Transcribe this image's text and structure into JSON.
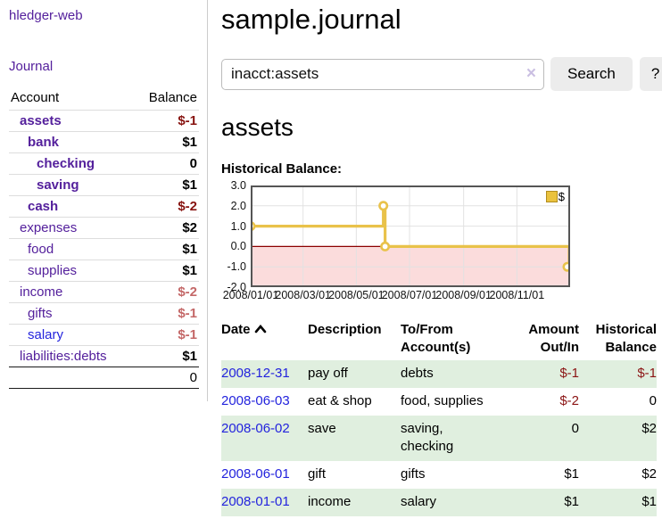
{
  "sidebar": {
    "app_title": "hledger-web",
    "journal_link": "Journal",
    "accounts_table": {
      "headers": {
        "account": "Account",
        "balance": "Balance"
      },
      "rows": [
        {
          "name": "assets",
          "balance": "$-1"
        },
        {
          "name": "bank",
          "balance": "$1"
        },
        {
          "name": "checking",
          "balance": "0"
        },
        {
          "name": "saving",
          "balance": "$1"
        },
        {
          "name": "cash",
          "balance": "$-2"
        },
        {
          "name": "expenses",
          "balance": "$2"
        },
        {
          "name": "food",
          "balance": "$1"
        },
        {
          "name": "supplies",
          "balance": "$1"
        },
        {
          "name": "income",
          "balance": "$-2"
        },
        {
          "name": "gifts",
          "balance": "$-1"
        },
        {
          "name": "salary",
          "balance": "$-1"
        },
        {
          "name": "liabilities:debts",
          "balance": "$1"
        }
      ],
      "total": "0"
    }
  },
  "header": {
    "title": "sample.journal"
  },
  "search": {
    "value": "inacct:assets",
    "clear_icon": "×",
    "button_label": "Search",
    "help_label": "?"
  },
  "account_page": {
    "heading": "assets",
    "chart_title": "Historical Balance:"
  },
  "chart_data": {
    "type": "line",
    "title": "Historical Balance:",
    "legend": {
      "label": "$",
      "swatch_color": "#eac23e",
      "position": "top-right"
    },
    "step": "after",
    "points": [
      {
        "date": "2008-01-01",
        "value": 1
      },
      {
        "date": "2008-06-01",
        "value": 2
      },
      {
        "date": "2008-06-03",
        "value": 0
      },
      {
        "date": "2008-12-31",
        "value": -1
      }
    ],
    "xlim": [
      "2008-01-01",
      "2009-01-01"
    ],
    "ylim": [
      -2,
      3
    ],
    "yticks": [
      3.0,
      2.0,
      1.0,
      0.0,
      -1.0,
      -2.0
    ],
    "ytick_labels": [
      "3.0",
      "2.0",
      "1.0",
      "0.0",
      "-1.0",
      "-2.0"
    ],
    "xticks": [
      {
        "date": "2008-01-01",
        "label": "2008/01/01"
      },
      {
        "date": "2008-03-01",
        "label": "2008/03/01"
      },
      {
        "date": "2008-05-01",
        "label": "2008/05/01"
      },
      {
        "date": "2008-07-01",
        "label": "2008/07/01"
      },
      {
        "date": "2008-09-01",
        "label": "2008/09/01"
      },
      {
        "date": "2008-11-01",
        "label": "2008/11/01"
      }
    ],
    "grid": true,
    "colors": {
      "line": "#e9c24a",
      "marker_fill": "#ffffff",
      "negative_region": "#fbdcdc",
      "zero_line": "#8c0000",
      "gridline": "#e2e2e2",
      "plot_border": "#555555"
    }
  },
  "register_table": {
    "headers": {
      "date": "Date",
      "description": "Description",
      "accounts": "To/From\nAccount(s)",
      "amount": "Amount\nOut/In",
      "balance": "Historical\nBalance"
    },
    "rows": [
      {
        "date": "2008-12-31",
        "description": "pay off",
        "accounts": "debts",
        "amount": "$-1",
        "balance": "$-1"
      },
      {
        "date": "2008-06-03",
        "description": "eat & shop",
        "accounts": "food, supplies",
        "amount": "$-2",
        "balance": "0"
      },
      {
        "date": "2008-06-02",
        "description": "save",
        "accounts": "saving,\nchecking",
        "amount": "0",
        "balance": "$2"
      },
      {
        "date": "2008-06-01",
        "description": "gift",
        "accounts": "gifts",
        "amount": "$1",
        "balance": "$2"
      },
      {
        "date": "2008-01-01",
        "description": "income",
        "accounts": "salary",
        "amount": "$1",
        "balance": "$1"
      }
    ]
  }
}
